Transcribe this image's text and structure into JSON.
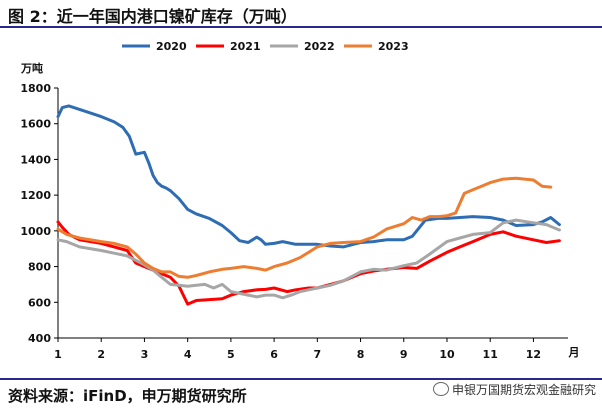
{
  "header": {
    "title": "图 2：近一年国内港口镍矿库存（万吨）"
  },
  "footer": {
    "source": "资料来源：iFinD，申万期货研究所",
    "watermark": "申银万国期货宏观金融研究"
  },
  "colors": {
    "2020": "#2e6db4",
    "2021": "#ff0000",
    "2022": "#a6a6a6",
    "2023": "#ed7d31"
  },
  "chart_data": {
    "type": "line",
    "title": "",
    "ylabel": "万吨",
    "xlabel": "月",
    "ylim": [
      400,
      1800
    ],
    "xlim": [
      1,
      12.8
    ],
    "yticks": [
      400,
      600,
      800,
      1000,
      1200,
      1400,
      1600,
      1800
    ],
    "xticks": [
      1,
      2,
      3,
      4,
      5,
      6,
      7,
      8,
      9,
      10,
      11,
      12
    ],
    "legend_position": "top",
    "series": [
      {
        "name": "2020",
        "x": [
          1,
          1.1,
          1.25,
          1.5,
          2,
          2.3,
          2.5,
          2.65,
          2.8,
          3,
          3.1,
          3.2,
          3.3,
          3.4,
          3.5,
          3.6,
          3.8,
          4,
          4.2,
          4.5,
          4.8,
          5,
          5.2,
          5.4,
          5.5,
          5.6,
          5.7,
          5.8,
          6,
          6.2,
          6.5,
          6.8,
          7,
          7.3,
          7.6,
          8,
          8.3,
          8.6,
          9,
          9.2,
          9.5,
          9.8,
          10,
          10.3,
          10.6,
          11,
          11.3,
          11.6,
          12,
          12.2,
          12.4,
          12.6
        ],
        "y": [
          1640,
          1690,
          1700,
          1680,
          1640,
          1610,
          1580,
          1530,
          1430,
          1440,
          1380,
          1310,
          1270,
          1250,
          1240,
          1225,
          1180,
          1120,
          1095,
          1070,
          1030,
          990,
          945,
          935,
          950,
          965,
          950,
          925,
          930,
          940,
          925,
          925,
          925,
          915,
          910,
          935,
          940,
          950,
          950,
          970,
          1060,
          1070,
          1070,
          1075,
          1080,
          1075,
          1060,
          1030,
          1035,
          1050,
          1075,
          1035
        ]
      },
      {
        "name": "2021",
        "x": [
          1,
          1.1,
          1.25,
          1.5,
          2,
          2.3,
          2.6,
          2.8,
          3,
          3.2,
          3.4,
          3.6,
          3.8,
          3.9,
          4,
          4.2,
          4.5,
          4.8,
          5,
          5.3,
          5.6,
          5.8,
          6,
          6.3,
          6.5,
          6.8,
          7,
          7.3,
          7.6,
          8,
          8.3,
          8.6,
          9,
          9.3,
          9.6,
          10,
          10.3,
          10.6,
          11,
          11.3,
          11.6,
          12,
          12.3,
          12.6
        ],
        "y": [
          1050,
          1020,
          980,
          950,
          930,
          910,
          890,
          820,
          800,
          780,
          760,
          740,
          690,
          640,
          590,
          610,
          615,
          620,
          640,
          660,
          670,
          672,
          680,
          660,
          670,
          680,
          680,
          700,
          720,
          760,
          775,
          785,
          795,
          790,
          830,
          880,
          910,
          940,
          980,
          995,
          970,
          950,
          935,
          945
        ]
      },
      {
        "name": "2022",
        "x": [
          1,
          1.2,
          1.5,
          2,
          2.3,
          2.6,
          2.8,
          3,
          3.2,
          3.4,
          3.6,
          3.8,
          4,
          4.2,
          4.4,
          4.6,
          4.8,
          5,
          5.2,
          5.4,
          5.6,
          5.8,
          6,
          6.2,
          6.4,
          6.6,
          6.8,
          7,
          7.3,
          7.6,
          8,
          8.3,
          8.6,
          9,
          9.3,
          9.6,
          10,
          10.3,
          10.6,
          11,
          11.3,
          11.6,
          12,
          12.3,
          12.6
        ],
        "y": [
          950,
          940,
          910,
          890,
          875,
          860,
          835,
          810,
          780,
          740,
          700,
          695,
          690,
          695,
          700,
          680,
          700,
          660,
          650,
          640,
          630,
          640,
          640,
          625,
          640,
          660,
          670,
          680,
          695,
          720,
          770,
          785,
          780,
          805,
          820,
          870,
          940,
          960,
          980,
          990,
          1045,
          1060,
          1045,
          1035,
          1005
        ]
      },
      {
        "name": "2023",
        "x": [
          1,
          1.2,
          1.5,
          2,
          2.3,
          2.6,
          2.8,
          3,
          3.2,
          3.4,
          3.6,
          3.8,
          4,
          4.2,
          4.5,
          4.8,
          5,
          5.3,
          5.6,
          5.8,
          6,
          6.3,
          6.6,
          6.8,
          7,
          7.3,
          7.6,
          8,
          8.3,
          8.6,
          9,
          9.2,
          9.4,
          9.6,
          9.8,
          10,
          10.2,
          10.4,
          10.6,
          10.8,
          11,
          11.3,
          11.6,
          12,
          12.2,
          12.4
        ],
        "y": [
          1010,
          980,
          960,
          940,
          930,
          910,
          870,
          820,
          790,
          770,
          770,
          745,
          740,
          750,
          770,
          785,
          790,
          800,
          790,
          780,
          800,
          820,
          850,
          880,
          910,
          930,
          935,
          940,
          965,
          1010,
          1040,
          1075,
          1060,
          1080,
          1080,
          1085,
          1100,
          1210,
          1230,
          1250,
          1270,
          1290,
          1295,
          1285,
          1250,
          1245
        ]
      }
    ]
  }
}
